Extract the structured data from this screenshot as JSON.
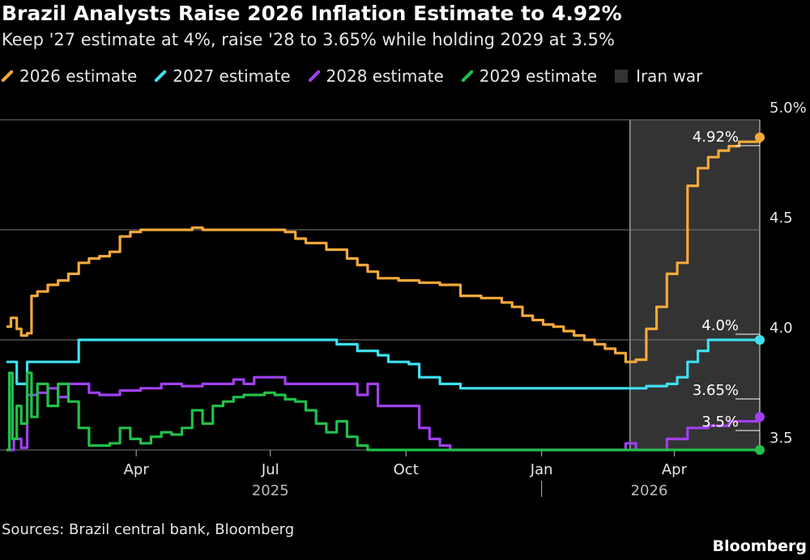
{
  "title": "Brazil Analysts Raise 2026 Inflation Estimate to 4.92%",
  "subtitle": "Keep '27 estimate at 4%, raise '28 to 3.65% while holding 2029 at 3.5%",
  "legend": [
    {
      "label": "2026 estimate",
      "color": "#f5a93b",
      "type": "line"
    },
    {
      "label": "2027 estimate",
      "color": "#3ee0f0",
      "type": "line"
    },
    {
      "label": "2028 estimate",
      "color": "#a040f0",
      "type": "line"
    },
    {
      "label": "2029 estimate",
      "color": "#22c04a",
      "type": "line"
    },
    {
      "label": "Iran war",
      "color": "#333333",
      "type": "box"
    }
  ],
  "source": "Sources: Brazil central bank, Bloomberg",
  "brand": "Bloomberg",
  "chart_data": {
    "type": "line",
    "x_start": "2025-01-03",
    "x_end": "2026-05-29",
    "ylim": [
      3.5,
      5.0
    ],
    "yticks": [
      {
        "value": 5.0,
        "label": "5.0%"
      },
      {
        "value": 4.5,
        "label": "4.5"
      },
      {
        "value": 4.0,
        "label": "4.0"
      },
      {
        "value": 3.5,
        "label": "3.5"
      }
    ],
    "xticks": [
      {
        "date": "2025-04-01",
        "label": "Apr"
      },
      {
        "date": "2025-07-01",
        "label": "Jul"
      },
      {
        "date": "2025-10-01",
        "label": "Oct"
      },
      {
        "date": "2026-01-01",
        "label": "Jan"
      },
      {
        "date": "2026-04-01",
        "label": "Apr"
      }
    ],
    "year_labels": [
      {
        "date": "2025-07-01",
        "label": "2025"
      },
      {
        "date": "2026-03-15",
        "label": "2026"
      }
    ],
    "year_divider": "2026-01-01",
    "shaded_region": {
      "label": "Iran war",
      "start": "2026-03-02",
      "end": "2026-05-29"
    },
    "series": [
      {
        "name": "2026 estimate",
        "color": "#f5a93b",
        "end_label": "4.92%",
        "points": [
          [
            "2025-01-03",
            4.06
          ],
          [
            "2025-01-06",
            4.1
          ],
          [
            "2025-01-10",
            4.05
          ],
          [
            "2025-01-13",
            4.02
          ],
          [
            "2025-01-17",
            4.03
          ],
          [
            "2025-01-20",
            4.2
          ],
          [
            "2025-01-24",
            4.22
          ],
          [
            "2025-01-31",
            4.25
          ],
          [
            "2025-02-07",
            4.27
          ],
          [
            "2025-02-14",
            4.3
          ],
          [
            "2025-02-21",
            4.35
          ],
          [
            "2025-02-28",
            4.37
          ],
          [
            "2025-03-07",
            4.38
          ],
          [
            "2025-03-14",
            4.4
          ],
          [
            "2025-03-21",
            4.47
          ],
          [
            "2025-03-28",
            4.49
          ],
          [
            "2025-04-04",
            4.5
          ],
          [
            "2025-05-02",
            4.5
          ],
          [
            "2025-05-09",
            4.51
          ],
          [
            "2025-05-16",
            4.5
          ],
          [
            "2025-07-04",
            4.5
          ],
          [
            "2025-07-11",
            4.49
          ],
          [
            "2025-07-18",
            4.46
          ],
          [
            "2025-07-25",
            4.44
          ],
          [
            "2025-08-08",
            4.41
          ],
          [
            "2025-08-22",
            4.37
          ],
          [
            "2025-08-29",
            4.34
          ],
          [
            "2025-09-05",
            4.31
          ],
          [
            "2025-09-12",
            4.28
          ],
          [
            "2025-09-26",
            4.27
          ],
          [
            "2025-10-10",
            4.26
          ],
          [
            "2025-10-24",
            4.25
          ],
          [
            "2025-11-07",
            4.2
          ],
          [
            "2025-11-21",
            4.19
          ],
          [
            "2025-12-05",
            4.17
          ],
          [
            "2025-12-12",
            4.15
          ],
          [
            "2025-12-19",
            4.11
          ],
          [
            "2025-12-26",
            4.09
          ],
          [
            "2026-01-02",
            4.07
          ],
          [
            "2026-01-09",
            4.06
          ],
          [
            "2026-01-16",
            4.04
          ],
          [
            "2026-01-23",
            4.02
          ],
          [
            "2026-01-30",
            4.0
          ],
          [
            "2026-02-06",
            3.98
          ],
          [
            "2026-02-13",
            3.96
          ],
          [
            "2026-02-20",
            3.94
          ],
          [
            "2026-02-27",
            3.9
          ],
          [
            "2026-03-06",
            3.91
          ],
          [
            "2026-03-13",
            4.05
          ],
          [
            "2026-03-20",
            4.15
          ],
          [
            "2026-03-27",
            4.3
          ],
          [
            "2026-04-03",
            4.35
          ],
          [
            "2026-04-10",
            4.7
          ],
          [
            "2026-04-17",
            4.78
          ],
          [
            "2026-04-24",
            4.83
          ],
          [
            "2026-05-01",
            4.86
          ],
          [
            "2026-05-08",
            4.88
          ],
          [
            "2026-05-15",
            4.9
          ],
          [
            "2026-05-29",
            4.92
          ]
        ]
      },
      {
        "name": "2027 estimate",
        "color": "#3ee0f0",
        "end_label": "4.0%",
        "points": [
          [
            "2025-01-03",
            3.9
          ],
          [
            "2025-01-10",
            3.8
          ],
          [
            "2025-01-17",
            3.9
          ],
          [
            "2025-02-14",
            3.9
          ],
          [
            "2025-02-21",
            4.0
          ],
          [
            "2025-08-08",
            4.0
          ],
          [
            "2025-08-15",
            3.98
          ],
          [
            "2025-08-29",
            3.95
          ],
          [
            "2025-09-12",
            3.93
          ],
          [
            "2025-09-19",
            3.9
          ],
          [
            "2025-10-03",
            3.89
          ],
          [
            "2025-10-10",
            3.83
          ],
          [
            "2025-10-24",
            3.8
          ],
          [
            "2025-11-07",
            3.78
          ],
          [
            "2026-03-06",
            3.78
          ],
          [
            "2026-03-13",
            3.79
          ],
          [
            "2026-03-27",
            3.8
          ],
          [
            "2026-04-03",
            3.83
          ],
          [
            "2026-04-10",
            3.9
          ],
          [
            "2026-04-17",
            3.95
          ],
          [
            "2026-04-24",
            4.0
          ],
          [
            "2026-05-29",
            4.0
          ]
        ]
      },
      {
        "name": "2028 estimate",
        "color": "#a040f0",
        "end_label": "3.65%",
        "points": [
          [
            "2025-01-03",
            3.5
          ],
          [
            "2025-01-08",
            3.55
          ],
          [
            "2025-01-13",
            3.51
          ],
          [
            "2025-01-17",
            3.75
          ],
          [
            "2025-01-24",
            3.76
          ],
          [
            "2025-01-31",
            3.78
          ],
          [
            "2025-02-07",
            3.74
          ],
          [
            "2025-02-14",
            3.8
          ],
          [
            "2025-02-28",
            3.76
          ],
          [
            "2025-03-07",
            3.75
          ],
          [
            "2025-03-21",
            3.77
          ],
          [
            "2025-04-04",
            3.78
          ],
          [
            "2025-04-18",
            3.8
          ],
          [
            "2025-05-02",
            3.79
          ],
          [
            "2025-05-16",
            3.8
          ],
          [
            "2025-05-30",
            3.8
          ],
          [
            "2025-06-06",
            3.82
          ],
          [
            "2025-06-13",
            3.8
          ],
          [
            "2025-06-20",
            3.83
          ],
          [
            "2025-07-04",
            3.83
          ],
          [
            "2025-07-11",
            3.8
          ],
          [
            "2025-07-18",
            3.8
          ],
          [
            "2025-08-22",
            3.8
          ],
          [
            "2025-08-29",
            3.75
          ],
          [
            "2025-09-05",
            3.8
          ],
          [
            "2025-09-12",
            3.7
          ],
          [
            "2025-10-03",
            3.7
          ],
          [
            "2025-10-10",
            3.6
          ],
          [
            "2025-10-17",
            3.55
          ],
          [
            "2025-10-24",
            3.52
          ],
          [
            "2025-10-31",
            3.5
          ],
          [
            "2026-02-20",
            3.5
          ],
          [
            "2026-02-27",
            3.53
          ],
          [
            "2026-03-06",
            3.5
          ],
          [
            "2026-03-20",
            3.5
          ],
          [
            "2026-03-27",
            3.55
          ],
          [
            "2026-04-10",
            3.6
          ],
          [
            "2026-04-24",
            3.61
          ],
          [
            "2026-05-08",
            3.63
          ],
          [
            "2026-05-29",
            3.65
          ]
        ]
      },
      {
        "name": "2029 estimate",
        "color": "#22c04a",
        "end_label": "3.5%",
        "points": [
          [
            "2025-01-03",
            3.5
          ],
          [
            "2025-01-05",
            3.85
          ],
          [
            "2025-01-07",
            3.55
          ],
          [
            "2025-01-10",
            3.7
          ],
          [
            "2025-01-13",
            3.62
          ],
          [
            "2025-01-17",
            3.85
          ],
          [
            "2025-01-20",
            3.65
          ],
          [
            "2025-01-24",
            3.8
          ],
          [
            "2025-01-31",
            3.7
          ],
          [
            "2025-02-07",
            3.8
          ],
          [
            "2025-02-14",
            3.72
          ],
          [
            "2025-02-21",
            3.6
          ],
          [
            "2025-02-28",
            3.52
          ],
          [
            "2025-03-07",
            3.52
          ],
          [
            "2025-03-14",
            3.53
          ],
          [
            "2025-03-21",
            3.6
          ],
          [
            "2025-03-28",
            3.55
          ],
          [
            "2025-04-04",
            3.53
          ],
          [
            "2025-04-11",
            3.56
          ],
          [
            "2025-04-18",
            3.58
          ],
          [
            "2025-04-25",
            3.57
          ],
          [
            "2025-05-02",
            3.6
          ],
          [
            "2025-05-09",
            3.68
          ],
          [
            "2025-05-16",
            3.62
          ],
          [
            "2025-05-23",
            3.7
          ],
          [
            "2025-05-30",
            3.72
          ],
          [
            "2025-06-06",
            3.74
          ],
          [
            "2025-06-13",
            3.75
          ],
          [
            "2025-06-27",
            3.76
          ],
          [
            "2025-07-04",
            3.75
          ],
          [
            "2025-07-11",
            3.73
          ],
          [
            "2025-07-18",
            3.72
          ],
          [
            "2025-07-25",
            3.68
          ],
          [
            "2025-08-01",
            3.62
          ],
          [
            "2025-08-08",
            3.58
          ],
          [
            "2025-08-15",
            3.63
          ],
          [
            "2025-08-22",
            3.56
          ],
          [
            "2025-08-29",
            3.52
          ],
          [
            "2025-09-05",
            3.5
          ],
          [
            "2026-05-29",
            3.5
          ]
        ]
      }
    ]
  }
}
